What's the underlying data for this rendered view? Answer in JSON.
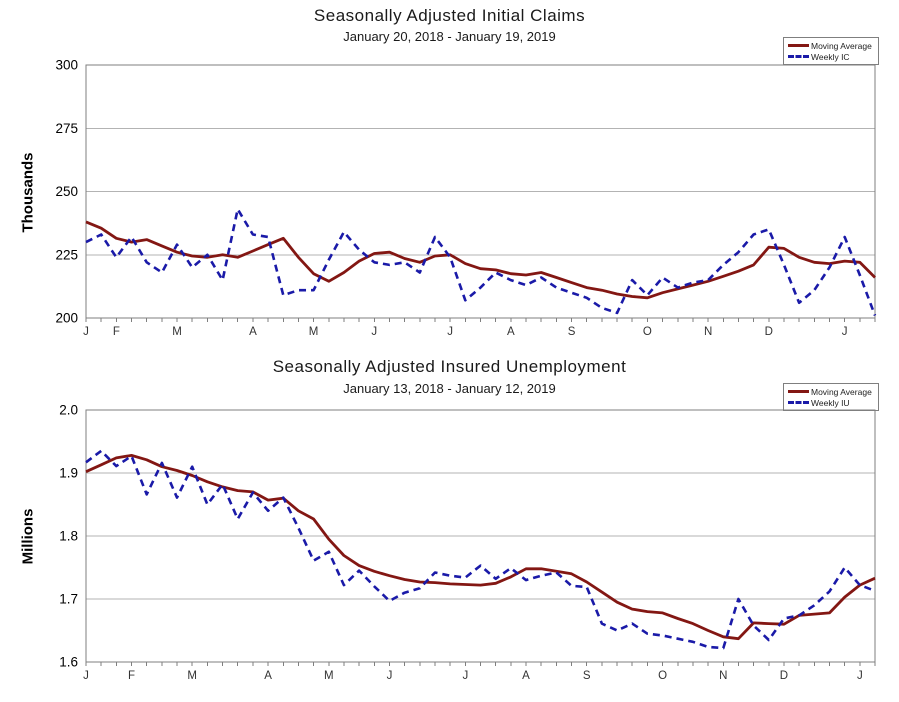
{
  "colors": {
    "moving_average_line": "#831713",
    "weekly_line": "#1A1AA8",
    "gridline": "#b3b3b3",
    "plot_border": "#7f7f7f",
    "tick": "#7f7f7f",
    "title_text": "#1a1a1a",
    "month_label_text": "#333333",
    "background": "#ffffff"
  },
  "chart_data": [
    {
      "type": "line",
      "title": "Seasonally Adjusted Initial Claims",
      "subtitle": "January 20, 2018 - January 19, 2019",
      "ylabel": "Thousands",
      "y_min": 200,
      "y_max": 300,
      "y_ticks": [
        {
          "value": 200,
          "label": "200"
        },
        {
          "value": 225,
          "label": "225"
        },
        {
          "value": 250,
          "label": "250"
        },
        {
          "value": 275,
          "label": "275"
        },
        {
          "value": 300,
          "label": "300"
        }
      ],
      "x_tick_labels": [
        "J",
        "F",
        "M",
        "A",
        "M",
        "J",
        "J",
        "A",
        "S",
        "O",
        "N",
        "D",
        "J"
      ],
      "x_label_week_index": [
        0,
        2,
        6,
        11,
        15,
        19,
        24,
        28,
        32,
        37,
        41,
        45,
        50
      ],
      "weeks": 53,
      "grid": true,
      "legend_position": "top-right",
      "series": [
        {
          "name": "Moving Average",
          "style": "solid",
          "values": [
            238,
            235.5,
            231.5,
            230,
            231,
            228.5,
            226,
            224.5,
            224,
            225,
            224,
            226.5,
            229,
            231.5,
            224,
            217.5,
            214.5,
            218,
            222.5,
            225.5,
            226,
            223.5,
            222,
            224.5,
            225,
            221.5,
            219.5,
            219,
            217.5,
            217,
            218,
            216,
            214,
            212,
            211,
            209.5,
            208.5,
            208,
            210,
            211.5,
            213,
            214.5,
            216.5,
            218.5,
            221,
            228,
            227.5,
            224,
            222,
            221.5,
            222.5,
            222,
            216
          ]
        },
        {
          "name": "Weekly IC",
          "style": "dashed",
          "values": [
            230,
            233,
            224,
            232,
            222,
            218,
            229,
            220,
            225,
            215,
            243,
            233,
            232,
            209,
            211,
            211,
            223,
            234,
            227,
            222,
            221,
            222,
            218,
            232,
            224,
            207,
            212,
            218,
            215,
            213,
            216,
            212,
            210,
            208,
            204,
            202,
            215,
            209,
            216,
            212,
            214,
            215,
            221,
            226,
            233,
            235,
            221,
            206,
            211,
            220,
            232,
            217,
            201
          ]
        }
      ]
    },
    {
      "type": "line",
      "title": "Seasonally Adjusted Insured Unemployment",
      "subtitle": "January 13, 2018 - January 12, 2019",
      "ylabel": "Millions",
      "y_min": 1.6,
      "y_max": 2.0,
      "y_ticks": [
        {
          "value": 1.6,
          "label": "1.6"
        },
        {
          "value": 1.7,
          "label": "1.7"
        },
        {
          "value": 1.8,
          "label": "1.8"
        },
        {
          "value": 1.9,
          "label": "1.9"
        },
        {
          "value": 2.0,
          "label": "2.0"
        }
      ],
      "x_tick_labels": [
        "J",
        "F",
        "M",
        "A",
        "M",
        "J",
        "J",
        "A",
        "S",
        "O",
        "N",
        "D",
        "J"
      ],
      "x_label_week_index": [
        0,
        3,
        7,
        12,
        16,
        20,
        25,
        29,
        33,
        38,
        42,
        46,
        51
      ],
      "weeks": 53,
      "grid": true,
      "legend_position": "top-right",
      "series": [
        {
          "name": "Moving Average",
          "style": "solid",
          "values": [
            1.902,
            1.913,
            1.924,
            1.928,
            1.921,
            1.91,
            1.904,
            1.896,
            1.886,
            1.878,
            1.872,
            1.87,
            1.857,
            1.86,
            1.84,
            1.827,
            1.795,
            1.769,
            1.753,
            1.744,
            1.737,
            1.731,
            1.727,
            1.726,
            1.724,
            1.723,
            1.722,
            1.725,
            1.735,
            1.748,
            1.748,
            1.744,
            1.74,
            1.727,
            1.711,
            1.695,
            1.684,
            1.68,
            1.678,
            1.669,
            1.661,
            1.65,
            1.64,
            1.637,
            1.662,
            1.661,
            1.66,
            1.674,
            1.676,
            1.678,
            1.703,
            1.722,
            1.733
          ]
        },
        {
          "name": "Weekly IU",
          "style": "dashed",
          "values": [
            1.917,
            1.935,
            1.911,
            1.927,
            1.866,
            1.916,
            1.861,
            1.91,
            1.85,
            1.882,
            1.827,
            1.869,
            1.84,
            1.861,
            1.813,
            1.761,
            1.775,
            1.722,
            1.745,
            1.72,
            1.697,
            1.71,
            1.717,
            1.742,
            1.737,
            1.734,
            1.753,
            1.732,
            1.749,
            1.73,
            1.737,
            1.742,
            1.721,
            1.719,
            1.661,
            1.65,
            1.661,
            1.645,
            1.642,
            1.637,
            1.632,
            1.624,
            1.622,
            1.7,
            1.658,
            1.635,
            1.669,
            1.674,
            1.69,
            1.712,
            1.75,
            1.722,
            1.713
          ]
        }
      ]
    }
  ]
}
